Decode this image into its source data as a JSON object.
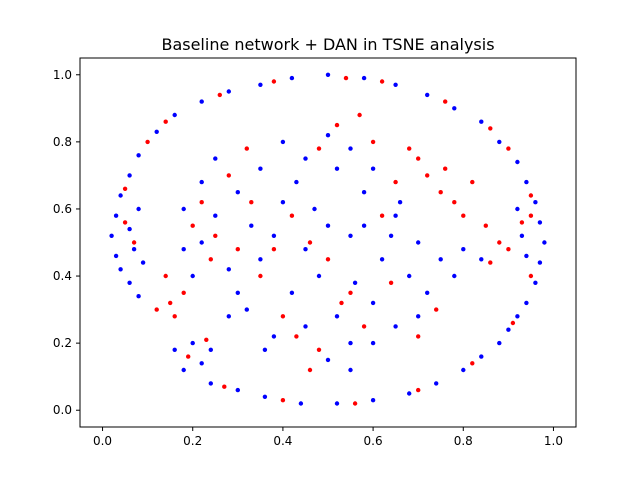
{
  "chart_data": {
    "type": "scatter",
    "title": "Baseline network + DAN in TSNE analysis",
    "xlabel": "",
    "ylabel": "",
    "xlim": [
      -0.05,
      1.05
    ],
    "ylim": [
      -0.05,
      1.05
    ],
    "x_ticks": [
      0.0,
      0.2,
      0.4,
      0.6,
      0.8,
      1.0
    ],
    "y_ticks": [
      0.0,
      0.2,
      0.4,
      0.6,
      0.8,
      1.0
    ],
    "x_tick_labels": [
      "0.0",
      "0.2",
      "0.4",
      "0.6",
      "0.8",
      "1.0"
    ],
    "y_tick_labels": [
      "0.0",
      "0.2",
      "0.4",
      "0.6",
      "0.8",
      "1.0"
    ],
    "grid": false,
    "legend": "none",
    "series": [
      {
        "color": "#0000ff",
        "points": [
          [
            0.45,
            0.48
          ],
          [
            0.52,
            0.72
          ],
          [
            0.58,
            0.65
          ],
          [
            0.33,
            0.55
          ],
          [
            0.4,
            0.62
          ],
          [
            0.47,
            0.6
          ],
          [
            0.55,
            0.52
          ],
          [
            0.62,
            0.45
          ],
          [
            0.68,
            0.4
          ],
          [
            0.6,
            0.32
          ],
          [
            0.52,
            0.28
          ],
          [
            0.45,
            0.25
          ],
          [
            0.38,
            0.22
          ],
          [
            0.5,
            0.15
          ],
          [
            0.55,
            0.2
          ],
          [
            0.35,
            0.72
          ],
          [
            0.3,
            0.65
          ],
          [
            0.25,
            0.58
          ],
          [
            0.22,
            0.5
          ],
          [
            0.28,
            0.42
          ],
          [
            0.3,
            0.35
          ],
          [
            0.28,
            0.28
          ],
          [
            0.2,
            0.4
          ],
          [
            0.18,
            0.6
          ],
          [
            0.25,
            0.75
          ],
          [
            0.4,
            0.8
          ],
          [
            0.45,
            0.75
          ],
          [
            0.5,
            0.82
          ],
          [
            0.55,
            0.78
          ],
          [
            0.58,
            0.55
          ],
          [
            0.65,
            0.58
          ],
          [
            0.7,
            0.5
          ],
          [
            0.75,
            0.45
          ],
          [
            0.8,
            0.48
          ],
          [
            0.72,
            0.35
          ],
          [
            0.65,
            0.25
          ],
          [
            0.6,
            0.2
          ],
          [
            0.42,
            0.35
          ],
          [
            0.48,
            0.4
          ],
          [
            0.35,
            0.45
          ],
          [
            0.38,
            0.52
          ],
          [
            0.43,
            0.68
          ],
          [
            0.6,
            0.72
          ],
          [
            0.66,
            0.62
          ],
          [
            0.78,
            0.4
          ],
          [
            0.7,
            0.28
          ],
          [
            0.56,
            0.38
          ],
          [
            0.5,
            0.55
          ],
          [
            0.32,
            0.3
          ],
          [
            0.22,
            0.68
          ],
          [
            0.18,
            0.48
          ],
          [
            0.36,
            0.18
          ],
          [
            0.55,
            0.12
          ],
          [
            0.64,
            0.52
          ],
          [
            0.84,
            0.45
          ],
          [
            0.5,
            1.0
          ],
          [
            0.42,
            0.99
          ],
          [
            0.58,
            0.99
          ],
          [
            0.35,
            0.97
          ],
          [
            0.65,
            0.97
          ],
          [
            0.28,
            0.95
          ],
          [
            0.72,
            0.94
          ],
          [
            0.22,
            0.92
          ],
          [
            0.78,
            0.9
          ],
          [
            0.16,
            0.88
          ],
          [
            0.84,
            0.86
          ],
          [
            0.12,
            0.83
          ],
          [
            0.88,
            0.8
          ],
          [
            0.08,
            0.76
          ],
          [
            0.92,
            0.74
          ],
          [
            0.06,
            0.7
          ],
          [
            0.94,
            0.68
          ],
          [
            0.04,
            0.64
          ],
          [
            0.96,
            0.62
          ],
          [
            0.03,
            0.58
          ],
          [
            0.97,
            0.56
          ],
          [
            0.02,
            0.52
          ],
          [
            0.98,
            0.5
          ],
          [
            0.03,
            0.46
          ],
          [
            0.97,
            0.44
          ],
          [
            0.04,
            0.42
          ],
          [
            0.96,
            0.38
          ],
          [
            0.06,
            0.38
          ],
          [
            0.94,
            0.32
          ],
          [
            0.08,
            0.34
          ],
          [
            0.92,
            0.28
          ],
          [
            0.9,
            0.24
          ],
          [
            0.88,
            0.2
          ],
          [
            0.84,
            0.16
          ],
          [
            0.8,
            0.12
          ],
          [
            0.74,
            0.08
          ],
          [
            0.68,
            0.05
          ],
          [
            0.6,
            0.03
          ],
          [
            0.52,
            0.02
          ],
          [
            0.44,
            0.02
          ],
          [
            0.36,
            0.04
          ],
          [
            0.3,
            0.06
          ],
          [
            0.24,
            0.08
          ],
          [
            0.18,
            0.12
          ],
          [
            0.16,
            0.18
          ],
          [
            0.2,
            0.2
          ],
          [
            0.24,
            0.18
          ],
          [
            0.22,
            0.14
          ],
          [
            0.06,
            0.54
          ],
          [
            0.07,
            0.48
          ],
          [
            0.08,
            0.6
          ],
          [
            0.09,
            0.44
          ],
          [
            0.92,
            0.6
          ],
          [
            0.93,
            0.52
          ],
          [
            0.94,
            0.46
          ]
        ]
      },
      {
        "color": "#ff0000",
        "points": [
          [
            0.75,
            0.65
          ],
          [
            0.72,
            0.7
          ],
          [
            0.78,
            0.62
          ],
          [
            0.8,
            0.58
          ],
          [
            0.7,
            0.75
          ],
          [
            0.82,
            0.68
          ],
          [
            0.76,
            0.72
          ],
          [
            0.85,
            0.55
          ],
          [
            0.88,
            0.5
          ],
          [
            0.86,
            0.44
          ],
          [
            0.9,
            0.48
          ],
          [
            0.12,
            0.3
          ],
          [
            0.15,
            0.32
          ],
          [
            0.18,
            0.35
          ],
          [
            0.14,
            0.4
          ],
          [
            0.16,
            0.28
          ],
          [
            0.52,
            0.85
          ],
          [
            0.48,
            0.78
          ],
          [
            0.42,
            0.58
          ],
          [
            0.38,
            0.48
          ],
          [
            0.35,
            0.4
          ],
          [
            0.3,
            0.48
          ],
          [
            0.25,
            0.52
          ],
          [
            0.22,
            0.62
          ],
          [
            0.28,
            0.7
          ],
          [
            0.32,
            0.78
          ],
          [
            0.46,
            0.5
          ],
          [
            0.5,
            0.45
          ],
          [
            0.55,
            0.35
          ],
          [
            0.58,
            0.25
          ],
          [
            0.48,
            0.18
          ],
          [
            0.43,
            0.22
          ],
          [
            0.4,
            0.28
          ],
          [
            0.62,
            0.58
          ],
          [
            0.65,
            0.68
          ],
          [
            0.68,
            0.78
          ],
          [
            0.6,
            0.8
          ],
          [
            0.2,
            0.55
          ],
          [
            0.24,
            0.45
          ],
          [
            0.33,
            0.62
          ],
          [
            0.57,
            0.88
          ],
          [
            0.64,
            0.38
          ],
          [
            0.53,
            0.32
          ],
          [
            0.46,
            0.12
          ],
          [
            0.74,
            0.3
          ],
          [
            0.7,
            0.22
          ],
          [
            0.54,
            0.99
          ],
          [
            0.38,
            0.98
          ],
          [
            0.62,
            0.98
          ],
          [
            0.26,
            0.94
          ],
          [
            0.76,
            0.92
          ],
          [
            0.14,
            0.86
          ],
          [
            0.86,
            0.84
          ],
          [
            0.1,
            0.8
          ],
          [
            0.9,
            0.78
          ],
          [
            0.05,
            0.66
          ],
          [
            0.95,
            0.64
          ],
          [
            0.05,
            0.56
          ],
          [
            0.95,
            0.58
          ],
          [
            0.95,
            0.4
          ],
          [
            0.91,
            0.26
          ],
          [
            0.82,
            0.14
          ],
          [
            0.7,
            0.06
          ],
          [
            0.56,
            0.02
          ],
          [
            0.4,
            0.03
          ],
          [
            0.27,
            0.07
          ],
          [
            0.19,
            0.16
          ],
          [
            0.23,
            0.21
          ],
          [
            0.07,
            0.5
          ],
          [
            0.93,
            0.56
          ]
        ]
      }
    ]
  }
}
